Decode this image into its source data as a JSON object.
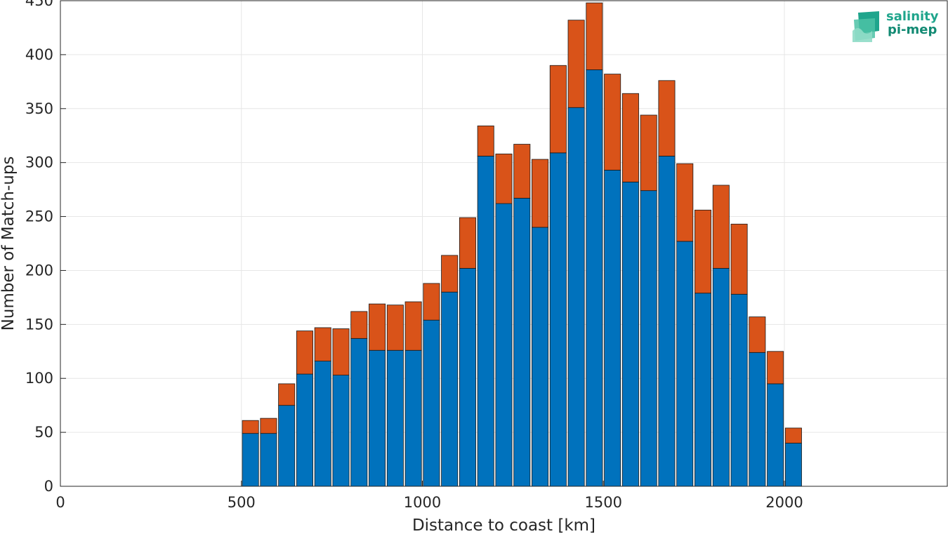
{
  "logo": {
    "line1": "salinity",
    "line2": "pi-mep",
    "color": "#1fa58c"
  },
  "chart_data": {
    "type": "bar",
    "stacked": true,
    "title": "",
    "xlabel": "Distance to coast [km]",
    "ylabel": "Number of Match-ups",
    "xlim": [
      0,
      2450
    ],
    "ylim": [
      0,
      450
    ],
    "xticks": [
      0,
      500,
      1000,
      1500,
      2000
    ],
    "yticks": [
      0,
      50,
      100,
      150,
      200,
      250,
      300,
      350,
      400,
      450
    ],
    "grid": true,
    "x": [
      525,
      575,
      625,
      675,
      725,
      775,
      825,
      875,
      925,
      975,
      1025,
      1075,
      1125,
      1175,
      1225,
      1275,
      1325,
      1375,
      1425,
      1475,
      1525,
      1575,
      1625,
      1675,
      1725,
      1775,
      1825,
      1875,
      1925,
      1975,
      2025
    ],
    "series": [
      {
        "color": "#0072bd",
        "values": [
          49,
          49,
          75,
          104,
          116,
          103,
          137,
          126,
          126,
          126,
          154,
          180,
          202,
          306,
          262,
          267,
          240,
          309,
          351,
          386,
          293,
          282,
          274,
          306,
          227,
          179,
          202,
          178,
          124,
          95,
          40
        ]
      },
      {
        "color": "#d95319",
        "values": [
          12,
          14,
          20,
          40,
          31,
          43,
          25,
          43,
          42,
          45,
          34,
          34,
          47,
          28,
          46,
          50,
          63,
          81,
          81,
          62,
          89,
          82,
          70,
          70,
          72,
          77,
          77,
          65,
          33,
          30,
          14
        ]
      }
    ]
  }
}
